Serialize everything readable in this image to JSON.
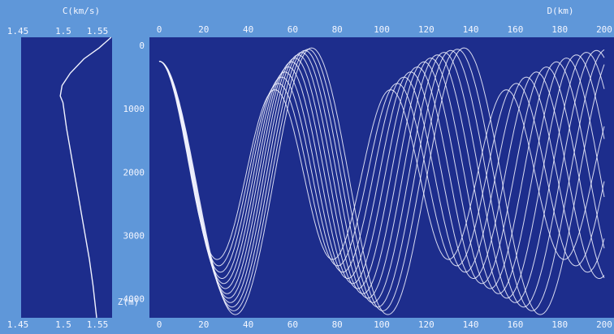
{
  "colors": {
    "background": "#5f97d9",
    "panel": "#1d2d8c",
    "trace": "#f1f3ff"
  },
  "chart_data": [
    {
      "type": "line",
      "title": "",
      "xlabel": "C(km/s)",
      "ylabel": "",
      "x_tick_labels": [
        "1.45",
        "1.5",
        "1.55"
      ],
      "xlim": [
        1.45,
        1.55
      ],
      "ylim": [
        4300,
        0
      ],
      "grid": false,
      "series": [
        {
          "x": [
            1.549,
            1.536,
            1.519,
            1.504,
            1.495,
            1.493,
            1.496,
            1.5,
            1.505,
            1.51,
            1.515,
            1.52,
            1.525,
            1.529,
            1.533
          ],
          "y": [
            0,
            160,
            330,
            550,
            740,
            900,
            1000,
            1400,
            1800,
            2200,
            2600,
            3000,
            3400,
            3800,
            4300
          ]
        }
      ]
    },
    {
      "type": "line",
      "title": "",
      "xlabel": "D(km)",
      "ylabel": "Z(m)",
      "x_tick_labels": [
        "0",
        "20",
        "40",
        "60",
        "80",
        "100",
        "120",
        "140",
        "160",
        "180",
        "200"
      ],
      "y_tick_labels": [
        "0",
        "1000",
        "2000",
        "3000",
        "4000"
      ],
      "xlim": [
        0,
        200
      ],
      "ylim": [
        4300,
        0
      ],
      "grid": false,
      "ray_launch_depth": 250,
      "turning_depths": [
        3380,
        3480,
        3580,
        3680,
        3760,
        3840,
        3920,
        3990,
        4060,
        4130,
        4190,
        4250
      ],
      "cycle_distances": [
        52,
        53.5,
        55,
        56.5,
        58,
        59.5,
        61,
        62.5,
        64,
        65.5,
        67,
        68.5
      ],
      "upper_turning_depths": [
        700,
        600,
        500,
        420,
        340,
        260,
        200,
        150,
        110,
        80,
        60,
        40
      ]
    }
  ]
}
